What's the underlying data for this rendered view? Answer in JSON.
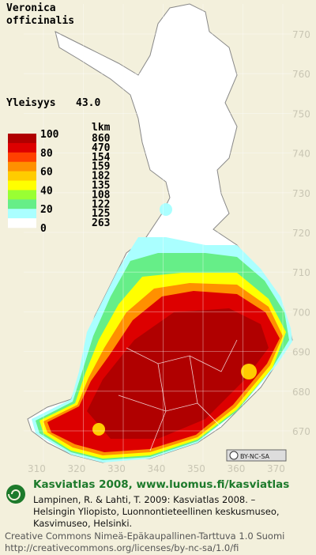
{
  "map": {
    "title_lines": [
      "Veronica",
      "officinalis"
    ],
    "frequency_label": "Yleisyys",
    "frequency_value": "43.0",
    "legend": {
      "count_header": "lkm",
      "scale_labels": [
        100,
        80,
        60,
        40,
        20,
        0
      ],
      "colors": [
        "#b00000",
        "#dd0000",
        "#ff4000",
        "#ff9000",
        "#ffcc00",
        "#ffff00",
        "#99ff33",
        "#66ee88",
        "#aaffff",
        "#ffffff"
      ],
      "counts": [
        860,
        470,
        154,
        159,
        182,
        135,
        108,
        122,
        125,
        263
      ]
    },
    "y_grid_labels": [
      770,
      760,
      750,
      740,
      730,
      720,
      710,
      700,
      690,
      680,
      670
    ],
    "x_grid_labels": [
      310,
      320,
      330,
      340,
      350,
      360,
      370
    ],
    "license_badge": "BY-NC-SA"
  },
  "footer": {
    "brand": "Kasviatlas 2008, www.luomus.fi/kasviatlas",
    "citation_lines": [
      "Lampinen, R. & Lahti, T. 2009: Kasviatlas 2008. –",
      "Helsingin Yliopisto, Luonnontieteellinen keskusmuseo,",
      "Kasvimuseo, Helsinki."
    ],
    "license_lines": [
      "Creative Commons Nimeä-Epäkaupallinen-Tarttuva 1.0 Suomi",
      "http://creativecommons.org/licenses/by-nc-sa/1.0/fi"
    ]
  }
}
